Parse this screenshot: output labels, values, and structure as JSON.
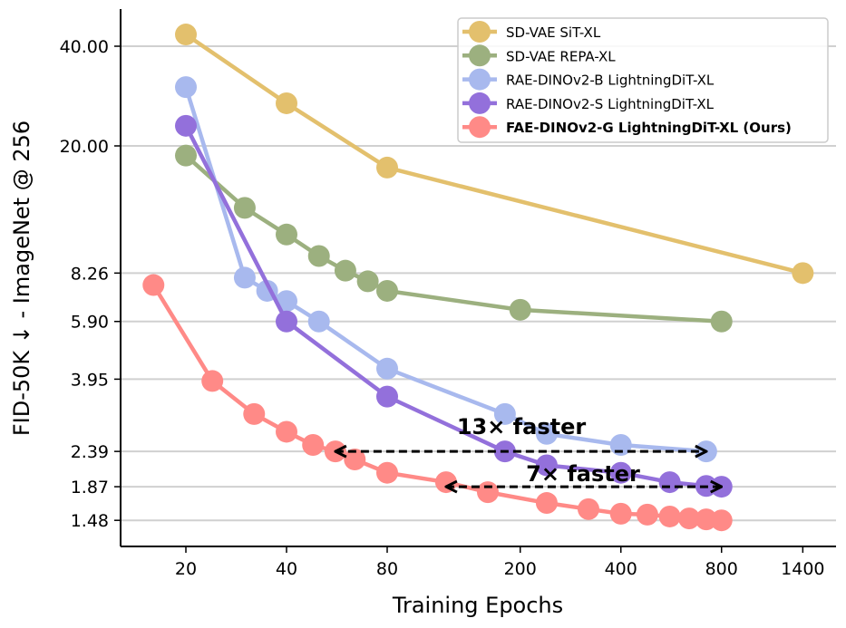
{
  "chart_data": {
    "type": "line",
    "xlabel": "Training Epochs",
    "ylabel": "FID-50K ↓ - ImageNet @ 256",
    "xscale": "log",
    "yscale": "log",
    "xlim": [
      13,
      1600
    ],
    "ylim": [
      1.3,
      55
    ],
    "xticks": [
      20,
      40,
      80,
      200,
      400,
      800,
      1400
    ],
    "xtick_labels": [
      "20",
      "40",
      "80",
      "200",
      "400",
      "800",
      "1400"
    ],
    "yticks": [
      40,
      20,
      8.26,
      5.9,
      3.95,
      2.39,
      1.87,
      1.48
    ],
    "ytick_labels": [
      "40.00",
      "20.00",
      "8.26",
      "5.90",
      "3.95",
      "2.39",
      "1.87",
      "1.48"
    ],
    "grid": "horizontal",
    "legend_position": "top-right",
    "series": [
      {
        "name": "SD-VAE SiT-XL",
        "color": "#E3C06D",
        "x": [
          20,
          40,
          80,
          1400
        ],
        "y": [
          43.4,
          26.9,
          17.2,
          8.26
        ]
      },
      {
        "name": "SD-VAE REPA-XL",
        "color": "#9CB07F",
        "x": [
          20,
          30,
          40,
          50,
          60,
          70,
          80,
          200,
          800
        ],
        "y": [
          18.7,
          13.0,
          10.8,
          9.3,
          8.4,
          7.8,
          7.3,
          6.4,
          5.9
        ]
      },
      {
        "name": "RAE-DINOv2-B LightningDiT-XL",
        "color": "#A8B9EE",
        "x": [
          20,
          30,
          35,
          40,
          50,
          80,
          180,
          240,
          400,
          720
        ],
        "y": [
          30.1,
          8.0,
          7.3,
          6.8,
          5.9,
          4.25,
          3.1,
          2.7,
          2.5,
          2.39
        ]
      },
      {
        "name": "RAE-DINOv2-S LightningDiT-XL",
        "color": "#9370DB",
        "x": [
          20,
          40,
          80,
          180,
          240,
          400,
          560,
          720,
          800
        ],
        "y": [
          23.0,
          5.9,
          3.5,
          2.39,
          2.17,
          2.06,
          1.93,
          1.88,
          1.87
        ]
      },
      {
        "name": "FAE-DINOv2-G LightningDiT-XL (Ours)",
        "color": "#FF8A87",
        "bold": true,
        "x": [
          16,
          24,
          32,
          40,
          48,
          56,
          64,
          80,
          120,
          160,
          240,
          320,
          400,
          480,
          560,
          640,
          720,
          800
        ],
        "y": [
          7.6,
          3.9,
          3.1,
          2.74,
          2.5,
          2.39,
          2.26,
          2.06,
          1.93,
          1.8,
          1.67,
          1.6,
          1.55,
          1.54,
          1.52,
          1.5,
          1.49,
          1.48
        ]
      }
    ],
    "annotations": [
      {
        "text": "13× faster",
        "arrow_from": [
          56,
          2.39
        ],
        "arrow_to": [
          720,
          2.39
        ]
      },
      {
        "text": "7× faster",
        "arrow_from": [
          120,
          1.87
        ],
        "arrow_to": [
          800,
          1.87
        ]
      }
    ]
  }
}
